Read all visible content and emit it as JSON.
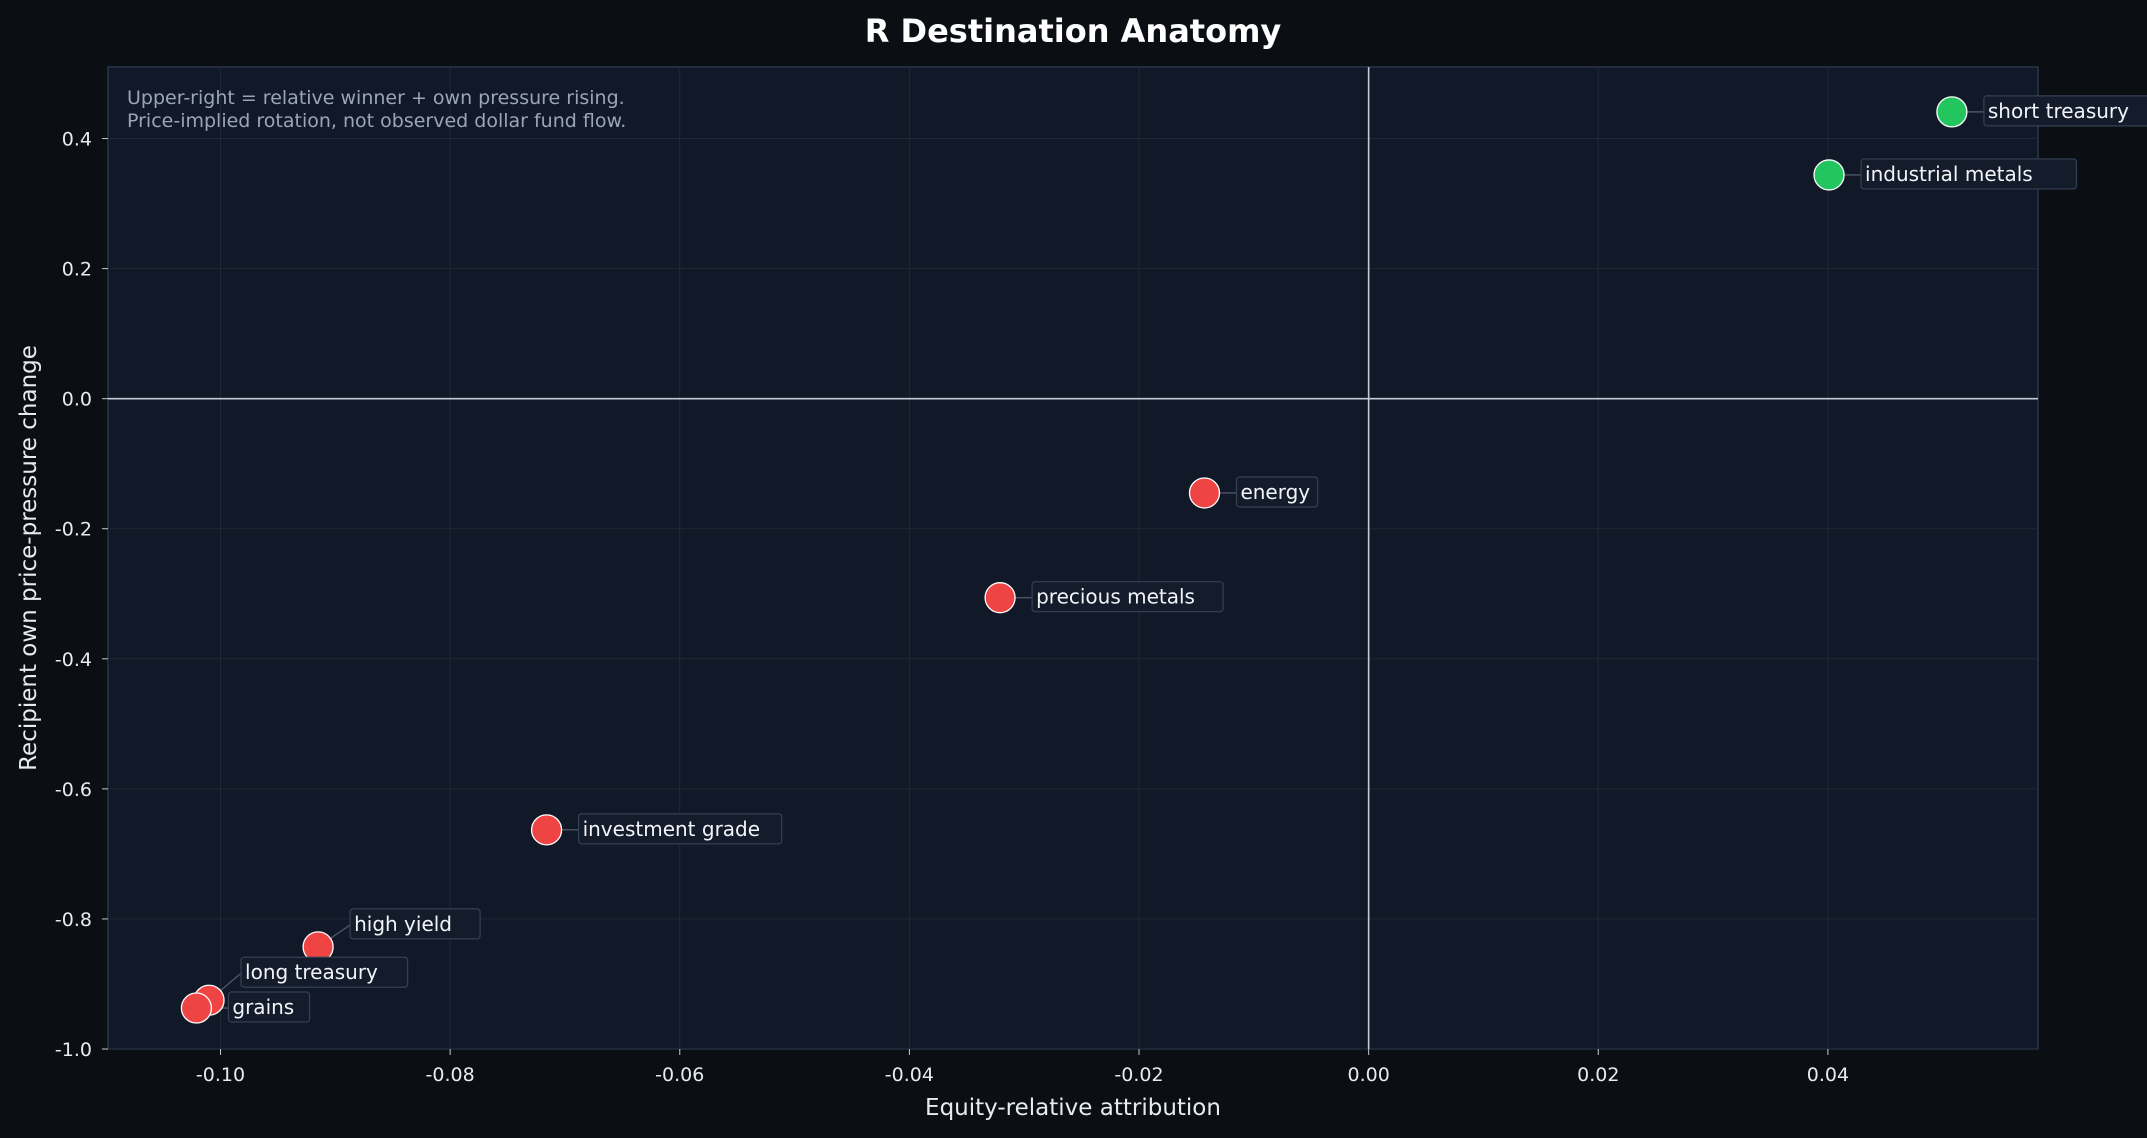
{
  "chart_data": {
    "type": "scatter",
    "title": "R Destination Anatomy",
    "xlabel": "Equity-relative attribution",
    "ylabel": "Recipient own price-pressure change",
    "xlim": [
      -0.1098,
      0.0583
    ],
    "ylim": [
      -1.0,
      0.51
    ],
    "xticks": [
      -0.1,
      -0.08,
      -0.06,
      -0.04,
      -0.02,
      0.0,
      0.02,
      0.04
    ],
    "xtick_labels": [
      "-0.10",
      "-0.08",
      "-0.06",
      "-0.04",
      "-0.02",
      "0.00",
      "0.02",
      "0.04"
    ],
    "yticks": [
      0.4,
      0.2,
      0.0,
      -0.2,
      -0.4,
      -0.6,
      -0.8,
      -1.0
    ],
    "ytick_labels": [
      "0.4",
      "0.2",
      "0.0",
      "-0.2",
      "-0.4",
      "-0.6",
      "-0.8",
      "-1.0"
    ],
    "grid": true,
    "notes": [
      "Upper-right = relative winner + own pressure rising.",
      "Price-implied rotation, not observed dollar fund flow."
    ],
    "colors": {
      "background": "#0b0f14",
      "plot_background": "#111827",
      "positive": "#22c55e",
      "negative": "#ef4444",
      "zero_line": "#c3cad6"
    },
    "points": [
      {
        "label": "short treasury",
        "x": 0.0508,
        "y": 0.441,
        "color": "#22c55e",
        "label_pos": "right"
      },
      {
        "label": "industrial metals",
        "x": 0.0401,
        "y": 0.344,
        "color": "#22c55e",
        "label_pos": "right"
      },
      {
        "label": "energy",
        "x": -0.0143,
        "y": -0.145,
        "color": "#ef4444",
        "label_pos": "right"
      },
      {
        "label": "precious metals",
        "x": -0.0321,
        "y": -0.306,
        "color": "#ef4444",
        "label_pos": "right"
      },
      {
        "label": "investment grade",
        "x": -0.0716,
        "y": -0.663,
        "color": "#ef4444",
        "label_pos": "right"
      },
      {
        "label": "high yield",
        "x": -0.0915,
        "y": -0.843,
        "color": "#ef4444",
        "label_pos": "upper-right"
      },
      {
        "label": "long treasury",
        "x": -0.101,
        "y": -0.925,
        "color": "#ef4444",
        "label_pos": "upper-right"
      },
      {
        "label": "grains",
        "x": -0.1021,
        "y": -0.937,
        "color": "#ef4444",
        "label_pos": "right"
      }
    ]
  }
}
